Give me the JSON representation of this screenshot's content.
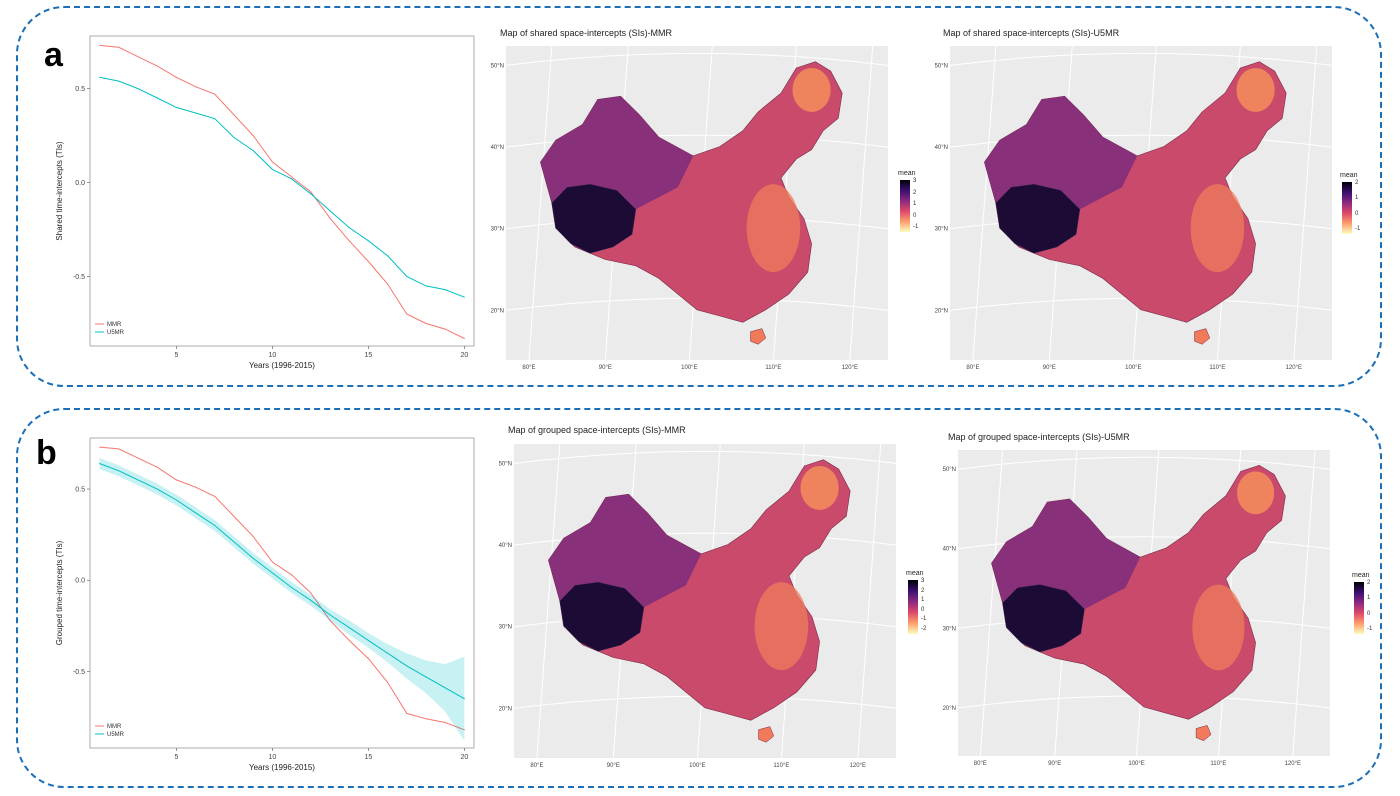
{
  "panels": [
    {
      "letter": "a",
      "chart_ylabel": "Shared time-intercepts (TIs)",
      "maps": [
        {
          "title": "Map of shared space-intercepts (SIs)-MMR",
          "legend_title": "mean",
          "legend_ticks": [
            "3",
            "2",
            "1",
            "0",
            "-1"
          ]
        },
        {
          "title": "Map of shared space-intercepts (SIs)-U5MR",
          "legend_title": "mean",
          "legend_ticks": [
            "2",
            "1",
            "0",
            "-1"
          ]
        }
      ]
    },
    {
      "letter": "b",
      "chart_ylabel": "Grouped time-intercepts (TIs)",
      "maps": [
        {
          "title": "Map of grouped space-intercepts (SIs)-MMR",
          "legend_title": "mean",
          "legend_ticks": [
            "3",
            "2",
            "1",
            "0",
            "-1",
            "-2"
          ]
        },
        {
          "title": "Map of grouped space-intercepts (SIs)-U5MR",
          "legend_title": "mean",
          "legend_ticks": [
            "2",
            "1",
            "0",
            "-1"
          ]
        }
      ]
    }
  ],
  "map_lat_labels": [
    "50°N",
    "40°N",
    "30°N",
    "20°N"
  ],
  "map_lon_labels": [
    "80°E",
    "90°E",
    "100°E",
    "110°E",
    "120°E"
  ],
  "colors": {
    "frame": "#1a6fb8",
    "mmr": "#f8766d",
    "u5mr": "#00bfc4",
    "map_bg": "#ebebeb"
  },
  "chart_data": [
    {
      "type": "line",
      "xlabel": "Years (1996-2015)",
      "ylabel": "Shared time-intercepts (TIs)",
      "xticks": [
        5,
        10,
        15,
        20
      ],
      "yticks": [
        0.5,
        0.0,
        -0.5
      ],
      "ytick_labels": [
        "0.5",
        "0.0",
        "-0.5"
      ],
      "xlim": [
        0.5,
        20.5
      ],
      "ylim": [
        -0.87,
        0.78
      ],
      "legend_position": "bottom-left",
      "x": [
        1,
        2,
        3,
        4,
        5,
        6,
        7,
        8,
        9,
        10,
        11,
        12,
        13,
        14,
        15,
        16,
        17,
        18,
        19,
        20
      ],
      "series": [
        {
          "name": "MMR",
          "color": "#f8766d",
          "values": [
            0.73,
            0.72,
            0.67,
            0.62,
            0.56,
            0.51,
            0.47,
            0.36,
            0.25,
            0.11,
            0.03,
            -0.05,
            -0.19,
            -0.31,
            -0.42,
            -0.54,
            -0.7,
            -0.75,
            -0.78,
            -0.83
          ]
        },
        {
          "name": "U5MR",
          "color": "#00bfc4",
          "values": [
            0.56,
            0.54,
            0.5,
            0.45,
            0.4,
            0.37,
            0.34,
            0.24,
            0.17,
            0.07,
            0.02,
            -0.06,
            -0.15,
            -0.24,
            -0.31,
            -0.39,
            -0.5,
            -0.55,
            -0.57,
            -0.61
          ]
        }
      ]
    },
    {
      "type": "line",
      "xlabel": "Years (1996-2015)",
      "ylabel": "Grouped time-intercepts (TIs)",
      "xticks": [
        5,
        10,
        15,
        20
      ],
      "yticks": [
        0.5,
        0.0,
        -0.5
      ],
      "ytick_labels": [
        "0.5",
        "0.0",
        "-0.5"
      ],
      "xlim": [
        0.5,
        20.5
      ],
      "ylim": [
        -0.92,
        0.78
      ],
      "legend_position": "bottom-left",
      "x": [
        1,
        2,
        3,
        4,
        5,
        6,
        7,
        8,
        9,
        10,
        11,
        12,
        13,
        14,
        15,
        16,
        17,
        18,
        19,
        20
      ],
      "series": [
        {
          "name": "MMR",
          "color": "#f8766d",
          "values": [
            0.73,
            0.72,
            0.67,
            0.62,
            0.55,
            0.51,
            0.46,
            0.35,
            0.24,
            0.1,
            0.03,
            -0.07,
            -0.22,
            -0.33,
            -0.43,
            -0.56,
            -0.73,
            -0.76,
            -0.78,
            -0.82
          ]
        },
        {
          "name": "U5MR",
          "color": "#00bfc4",
          "values": [
            0.64,
            0.6,
            0.55,
            0.5,
            0.44,
            0.37,
            0.3,
            0.21,
            0.12,
            0.04,
            -0.04,
            -0.11,
            -0.19,
            -0.26,
            -0.33,
            -0.4,
            -0.47,
            -0.53,
            -0.59,
            -0.65
          ],
          "ci_lower": [
            0.61,
            0.57,
            0.52,
            0.47,
            0.41,
            0.34,
            0.27,
            0.18,
            0.09,
            0.01,
            -0.07,
            -0.14,
            -0.22,
            -0.3,
            -0.37,
            -0.45,
            -0.54,
            -0.62,
            -0.72,
            -0.88
          ],
          "ci_upper": [
            0.67,
            0.63,
            0.58,
            0.53,
            0.47,
            0.4,
            0.33,
            0.24,
            0.15,
            0.07,
            -0.01,
            -0.08,
            -0.16,
            -0.22,
            -0.29,
            -0.35,
            -0.4,
            -0.44,
            -0.46,
            -0.42
          ]
        }
      ]
    }
  ]
}
